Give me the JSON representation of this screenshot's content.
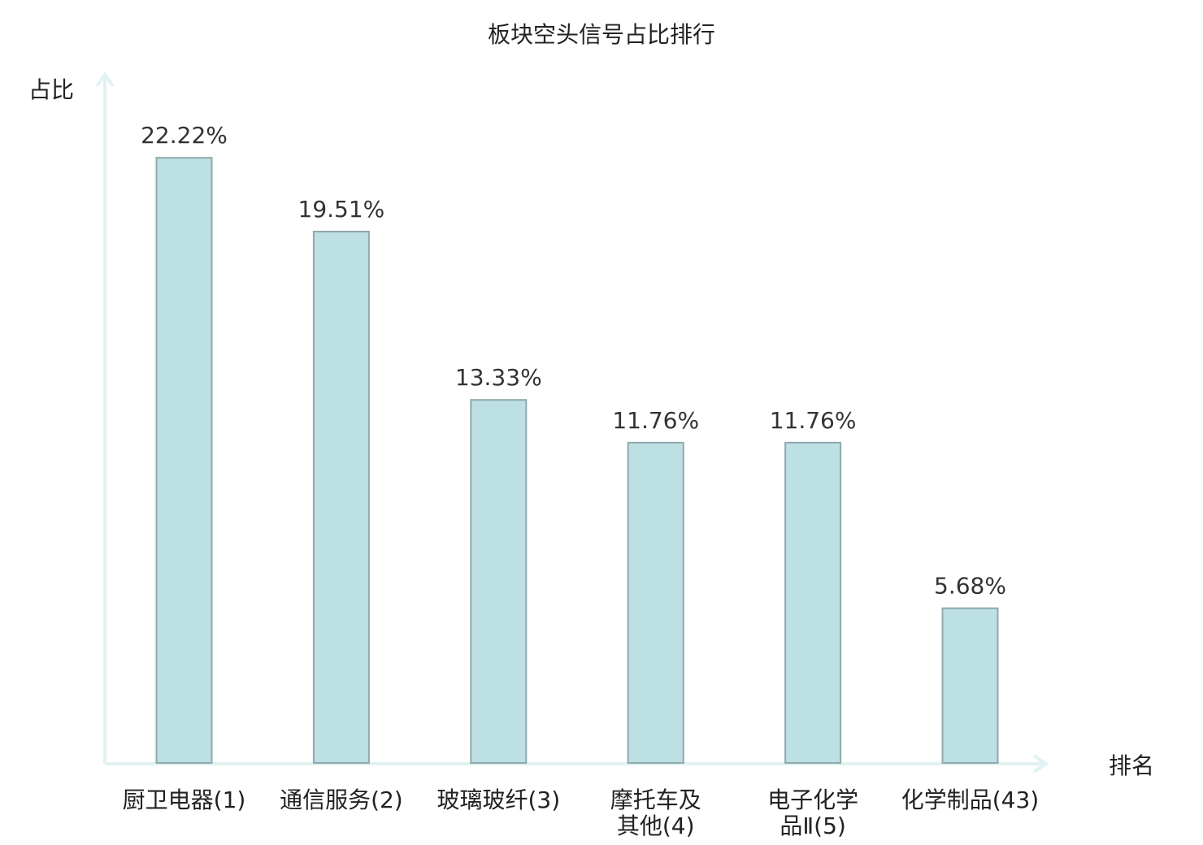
{
  "chart_data": {
    "type": "bar",
    "title": "板块空头信号占比排行",
    "xlabel": "排名",
    "ylabel": "占比",
    "categories": [
      {
        "lines": [
          "厨卫电器(1)"
        ],
        "highlight": false
      },
      {
        "lines": [
          "通信服务(2)"
        ],
        "highlight": false
      },
      {
        "lines": [
          "玻璃玻纤(3)"
        ],
        "highlight": false
      },
      {
        "lines": [
          "摩托车及",
          "其他(4)"
        ],
        "highlight": false
      },
      {
        "lines": [
          "电子化学",
          "品Ⅱ(5)"
        ],
        "highlight": false
      },
      {
        "lines": [
          "化学制品(43)"
        ],
        "highlight": true
      }
    ],
    "values": [
      22.22,
      19.51,
      13.33,
      11.76,
      11.76,
      5.68
    ],
    "value_labels": [
      "22.22%",
      "19.51%",
      "13.33%",
      "11.76%",
      "11.76%",
      "5.68%"
    ],
    "ylim": [
      0,
      25
    ],
    "grid": false,
    "colors": {
      "bar_fill": "#bde0e3",
      "bar_stroke": "#8fa9ac",
      "axis": "#e0f2f1",
      "highlight_text": "#e0201b",
      "text": "#222222"
    }
  }
}
